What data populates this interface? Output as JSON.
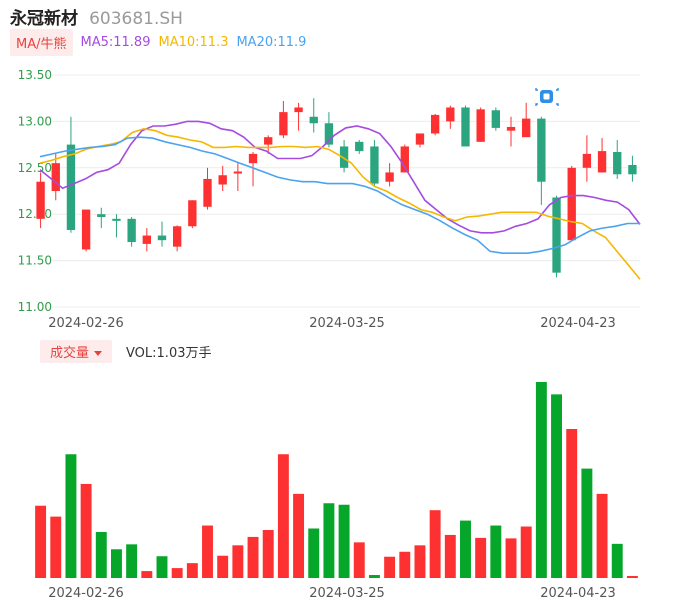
{
  "header": {
    "name": "永冠新材",
    "code": "603681.SH"
  },
  "ma_legend": {
    "badge": "MA/牛熊",
    "ma5": {
      "label": "MA5:11.89",
      "color": "#a54be0"
    },
    "ma10": {
      "label": "MA10:11.3",
      "color": "#f5b800"
    },
    "ma20": {
      "label": "MA20:11.9",
      "color": "#4aa3ef"
    }
  },
  "volume_legend": {
    "badge": "成交量",
    "label": "VOL:1.03万手"
  },
  "colors": {
    "up": "#fd3131",
    "down": "#05a629",
    "candle_down": "#2aa57f",
    "grid": "#ececec",
    "axis_text": "#555555",
    "price_tick_text": "#2e9e4a"
  },
  "chart_data": [
    {
      "type": "candlestick",
      "ylim": [
        11.0,
        13.5
      ],
      "y_ticks": [
        "13.50",
        "13.00",
        "12.50",
        "12.00",
        "11.50",
        "11.00"
      ],
      "x_ticks": [
        "2024-02-26",
        "2024-03-25",
        "2024-04-23"
      ],
      "candles": [
        {
          "o": 11.95,
          "h": 12.45,
          "l": 11.85,
          "c": 12.35
        },
        {
          "o": 12.25,
          "h": 12.65,
          "l": 12.15,
          "c": 12.55
        },
        {
          "o": 12.75,
          "h": 13.05,
          "l": 11.8,
          "c": 11.83
        },
        {
          "o": 11.62,
          "h": 12.05,
          "l": 11.6,
          "c": 12.05
        },
        {
          "o": 12.0,
          "h": 12.07,
          "l": 11.85,
          "c": 11.97
        },
        {
          "o": 11.95,
          "h": 12.0,
          "l": 11.75,
          "c": 11.94
        },
        {
          "o": 11.95,
          "h": 11.97,
          "l": 11.65,
          "c": 11.7
        },
        {
          "o": 11.68,
          "h": 11.85,
          "l": 11.6,
          "c": 11.77
        },
        {
          "o": 11.77,
          "h": 11.92,
          "l": 11.65,
          "c": 11.72
        },
        {
          "o": 11.65,
          "h": 11.88,
          "l": 11.6,
          "c": 11.87
        },
        {
          "o": 11.87,
          "h": 12.15,
          "l": 11.85,
          "c": 12.15
        },
        {
          "o": 12.08,
          "h": 12.5,
          "l": 12.05,
          "c": 12.38
        },
        {
          "o": 12.32,
          "h": 12.52,
          "l": 12.25,
          "c": 12.42
        },
        {
          "o": 12.45,
          "h": 12.55,
          "l": 12.25,
          "c": 12.46
        },
        {
          "o": 12.55,
          "h": 12.67,
          "l": 12.3,
          "c": 12.65
        },
        {
          "o": 12.75,
          "h": 12.85,
          "l": 12.65,
          "c": 12.83
        },
        {
          "o": 12.85,
          "h": 13.22,
          "l": 12.82,
          "c": 13.1
        },
        {
          "o": 13.1,
          "h": 13.2,
          "l": 12.9,
          "c": 13.15
        },
        {
          "o": 13.05,
          "h": 13.25,
          "l": 12.88,
          "c": 12.98
        },
        {
          "o": 12.98,
          "h": 13.1,
          "l": 12.72,
          "c": 12.75
        },
        {
          "o": 12.73,
          "h": 12.8,
          "l": 12.45,
          "c": 12.5
        },
        {
          "o": 12.78,
          "h": 12.8,
          "l": 12.65,
          "c": 12.68
        },
        {
          "o": 12.73,
          "h": 12.8,
          "l": 12.3,
          "c": 12.33
        },
        {
          "o": 12.35,
          "h": 12.55,
          "l": 12.3,
          "c": 12.45
        },
        {
          "o": 12.45,
          "h": 12.75,
          "l": 12.45,
          "c": 12.73
        },
        {
          "o": 12.75,
          "h": 12.87,
          "l": 12.72,
          "c": 12.87
        },
        {
          "o": 12.87,
          "h": 13.08,
          "l": 12.85,
          "c": 13.07
        },
        {
          "o": 13.0,
          "h": 13.17,
          "l": 12.92,
          "c": 13.15
        },
        {
          "o": 13.15,
          "h": 13.17,
          "l": 12.73,
          "c": 12.73
        },
        {
          "o": 12.78,
          "h": 13.15,
          "l": 12.78,
          "c": 13.13
        },
        {
          "o": 13.12,
          "h": 13.15,
          "l": 12.9,
          "c": 12.93
        },
        {
          "o": 12.9,
          "h": 13.05,
          "l": 12.73,
          "c": 12.94
        },
        {
          "o": 12.83,
          "h": 13.2,
          "l": 12.83,
          "c": 13.03
        },
        {
          "o": 13.03,
          "h": 13.05,
          "l": 12.1,
          "c": 12.35
        },
        {
          "o": 12.18,
          "h": 12.2,
          "l": 11.32,
          "c": 11.37
        },
        {
          "o": 11.72,
          "h": 12.52,
          "l": 11.72,
          "c": 12.5
        },
        {
          "o": 12.5,
          "h": 12.85,
          "l": 12.35,
          "c": 12.65
        },
        {
          "o": 12.45,
          "h": 12.82,
          "l": 12.45,
          "c": 12.68
        },
        {
          "o": 12.67,
          "h": 12.8,
          "l": 12.38,
          "c": 12.43
        },
        {
          "o": 12.53,
          "h": 12.63,
          "l": 12.35,
          "c": 12.43
        }
      ],
      "ma_series": [
        {
          "name": "MA5",
          "color": "#a54be0",
          "values": [
            12.48,
            12.38,
            12.28,
            12.33,
            12.38,
            12.45,
            12.48,
            12.55,
            12.75,
            12.9,
            12.95,
            12.95,
            12.97,
            13.0,
            13.0,
            12.98,
            12.92,
            12.9,
            12.83,
            12.72,
            12.68,
            12.6,
            12.6,
            12.6,
            12.63,
            12.73,
            12.85,
            12.93,
            12.95,
            12.92,
            12.87,
            12.73,
            12.55,
            12.35,
            12.15,
            12.05,
            11.95,
            11.88,
            11.82,
            11.8,
            11.8,
            11.82,
            11.87,
            11.9,
            11.95,
            12.1,
            12.18,
            12.2,
            12.2,
            12.18,
            12.15,
            12.13,
            12.05,
            11.89
          ]
        },
        {
          "name": "MA10",
          "color": "#f5b800",
          "values": [
            12.55,
            12.58,
            12.62,
            12.65,
            12.7,
            12.73,
            12.75,
            12.78,
            12.88,
            12.92,
            12.9,
            12.85,
            12.83,
            12.8,
            12.78,
            12.72,
            12.72,
            12.73,
            12.72,
            12.72,
            12.72,
            12.73,
            12.73,
            12.72,
            12.73,
            12.7,
            12.63,
            12.55,
            12.4,
            12.3,
            12.25,
            12.18,
            12.12,
            12.05,
            12.02,
            11.97,
            11.93,
            11.97,
            11.98,
            12.0,
            12.02,
            12.02,
            12.02,
            12.02,
            11.98,
            11.95,
            11.92,
            11.9,
            11.82,
            11.75,
            11.6,
            11.45,
            11.3
          ]
        },
        {
          "name": "MA20",
          "color": "#4aa3ef",
          "values": [
            12.62,
            12.65,
            12.68,
            12.7,
            12.72,
            12.73,
            12.75,
            12.82,
            12.83,
            12.82,
            12.78,
            12.75,
            12.72,
            12.68,
            12.65,
            12.6,
            12.55,
            12.5,
            12.45,
            12.4,
            12.37,
            12.35,
            12.35,
            12.33,
            12.33,
            12.33,
            12.3,
            12.25,
            12.17,
            12.1,
            12.05,
            12.0,
            11.93,
            11.85,
            11.78,
            11.72,
            11.6,
            11.58,
            11.58,
            11.58,
            11.6,
            11.63,
            11.67,
            11.75,
            11.82,
            11.85,
            11.87,
            11.9,
            11.9
          ]
        }
      ]
    },
    {
      "type": "bar",
      "x_ticks": [
        "2024-02-26",
        "2024-03-25",
        "2024-04-23"
      ],
      "values": [
        1.46,
        1.24,
        2.5,
        1.9,
        0.93,
        0.58,
        0.68,
        0.14,
        0.44,
        0.2,
        0.3,
        1.06,
        0.45,
        0.66,
        0.83,
        0.97,
        2.5,
        1.7,
        1.0,
        1.51,
        1.48,
        0.72,
        0.06,
        0.43,
        0.53,
        0.66,
        1.37,
        0.87,
        1.16,
        0.81,
        1.06,
        0.8,
        1.04,
        3.96,
        3.71,
        3.01,
        2.21,
        1.7,
        0.69,
        0.04
      ],
      "up": [
        true,
        true,
        false,
        true,
        false,
        false,
        false,
        true,
        false,
        true,
        true,
        true,
        true,
        true,
        true,
        true,
        true,
        true,
        false,
        false,
        false,
        true,
        false,
        true,
        true,
        true,
        true,
        true,
        false,
        true,
        false,
        true,
        true,
        false,
        false,
        true,
        false,
        true,
        false,
        true
      ]
    }
  ]
}
